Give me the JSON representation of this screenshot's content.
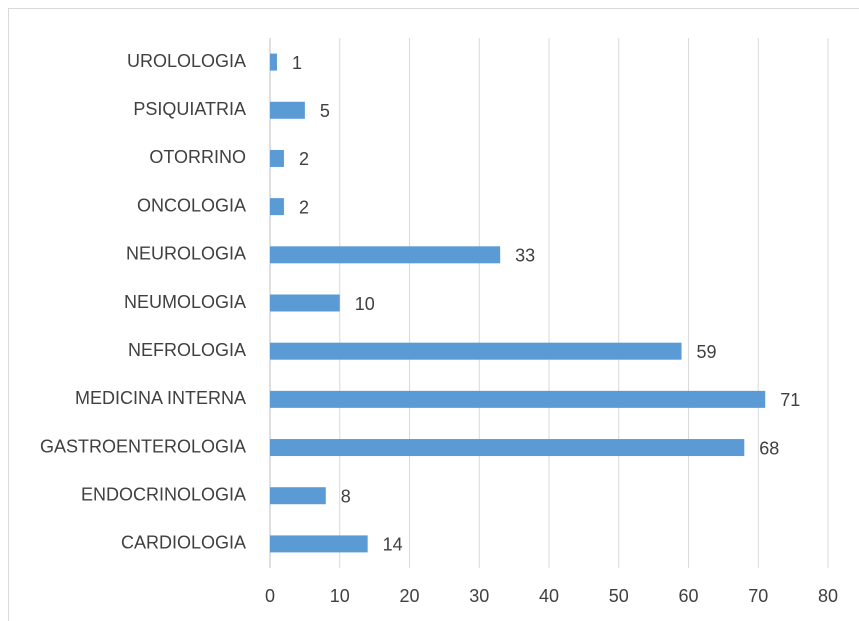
{
  "chart_data": {
    "type": "bar",
    "orientation": "horizontal",
    "categories": [
      "CARDIOLOGIA",
      "ENDOCRINOLOGIA",
      "GASTROENTEROLOGIA",
      "MEDICINA INTERNA",
      "NEFROLOGIA",
      "NEUMOLOGIA",
      "NEUROLOGIA",
      "ONCOLOGIA",
      "OTORRINO",
      "PSIQUIATRIA",
      "UROLOLOGIA"
    ],
    "values": [
      14,
      8,
      68,
      71,
      59,
      10,
      33,
      2,
      2,
      5,
      1
    ],
    "color": "#5b9bd5",
    "xlim": [
      0,
      80
    ],
    "xticks": [
      0,
      10,
      20,
      30,
      40,
      50,
      60,
      70,
      80
    ],
    "grid": true
  }
}
